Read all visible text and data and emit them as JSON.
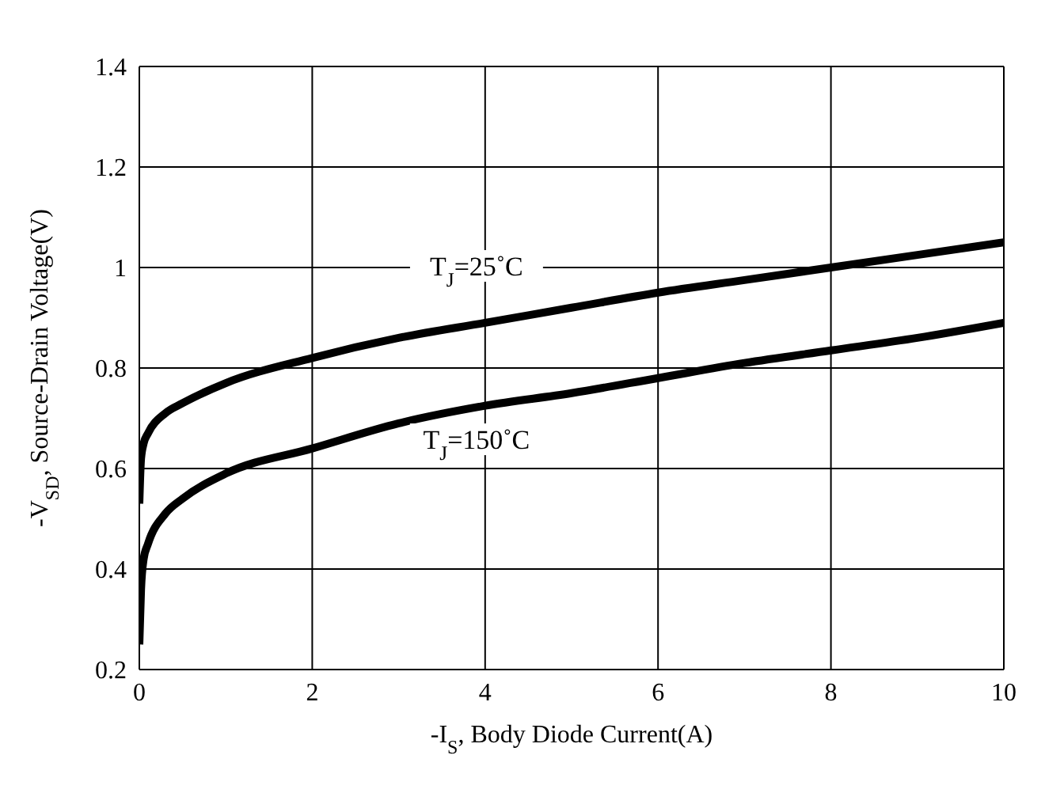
{
  "chart_data": {
    "type": "line",
    "xlabel": "-I$_{S}$, Body Diode Current(A)",
    "ylabel": "-V$_{SD}$, Source-Drain Voltage(V)",
    "xlim": [
      0,
      10
    ],
    "xticks": [
      0,
      2,
      4,
      6,
      8,
      10
    ],
    "ylim": [
      0.2,
      1.4
    ],
    "yticks": [
      0.2,
      0.4,
      0.6,
      0.8,
      1,
      1.2,
      1.4
    ],
    "grid": true,
    "legend": false,
    "marker": "none",
    "line_style": "solid",
    "series": [
      {
        "name": "T$_{J}$=25˚C",
        "color": "#000000",
        "x": [
          0,
          0.02,
          0.05,
          0.1,
          0.3,
          0.5,
          1,
          2,
          3,
          4,
          5,
          6,
          7,
          8,
          9,
          10
        ],
        "values": [
          0.53,
          0.62,
          0.65,
          0.67,
          0.71,
          0.73,
          0.77,
          0.82,
          0.86,
          0.89,
          0.92,
          0.95,
          0.975,
          1.0,
          1.025,
          1.05
        ]
      },
      {
        "name": "T$_{J}$=150˚C",
        "color": "#000000",
        "x": [
          0,
          0.02,
          0.05,
          0.1,
          0.3,
          0.5,
          1,
          2,
          3,
          4,
          5,
          6,
          7,
          8,
          9,
          10
        ],
        "values": [
          0.25,
          0.36,
          0.42,
          0.45,
          0.51,
          0.54,
          0.59,
          0.64,
          0.69,
          0.725,
          0.75,
          0.78,
          0.81,
          0.835,
          0.86,
          0.89
        ]
      }
    ]
  }
}
